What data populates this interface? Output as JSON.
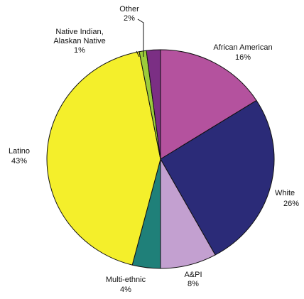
{
  "chart_data": {
    "type": "pie",
    "slices": [
      {
        "label": "African American",
        "value": 16,
        "value_label": "16%",
        "color": "#b4529e"
      },
      {
        "label": "White",
        "value": 26,
        "value_label": "26%",
        "color": "#2b2b78"
      },
      {
        "label": "A&PI",
        "value": 8,
        "value_label": "8%",
        "color": "#c3a0d0"
      },
      {
        "label": "Multi-ethnic",
        "value": 4,
        "value_label": "4%",
        "color": "#1f8079"
      },
      {
        "label": "Latino",
        "value": 43,
        "value_label": "43%",
        "color": "#f4ef2b"
      },
      {
        "label": "Native Indian, Alaskan Native",
        "value": 1,
        "value_label": "1%",
        "color": "#9ccc3a"
      },
      {
        "label": "Other",
        "value": 2,
        "value_label": "2%",
        "color": "#7b2f84"
      }
    ],
    "labels": {
      "african_american": {
        "name": "African American",
        "pct": "16%"
      },
      "white": {
        "name": "White",
        "pct": "26%"
      },
      "api": {
        "name": "A&PI",
        "pct": "8%"
      },
      "multi_ethnic": {
        "name": "Multi-ethnic",
        "pct": "4%"
      },
      "latino": {
        "name": "Latino",
        "pct": "43%"
      },
      "native": {
        "name_line1": "Native Indian,",
        "name_line2": "Alaskan Native",
        "pct": "1%"
      },
      "other": {
        "name": "Other",
        "pct": "2%"
      }
    }
  }
}
